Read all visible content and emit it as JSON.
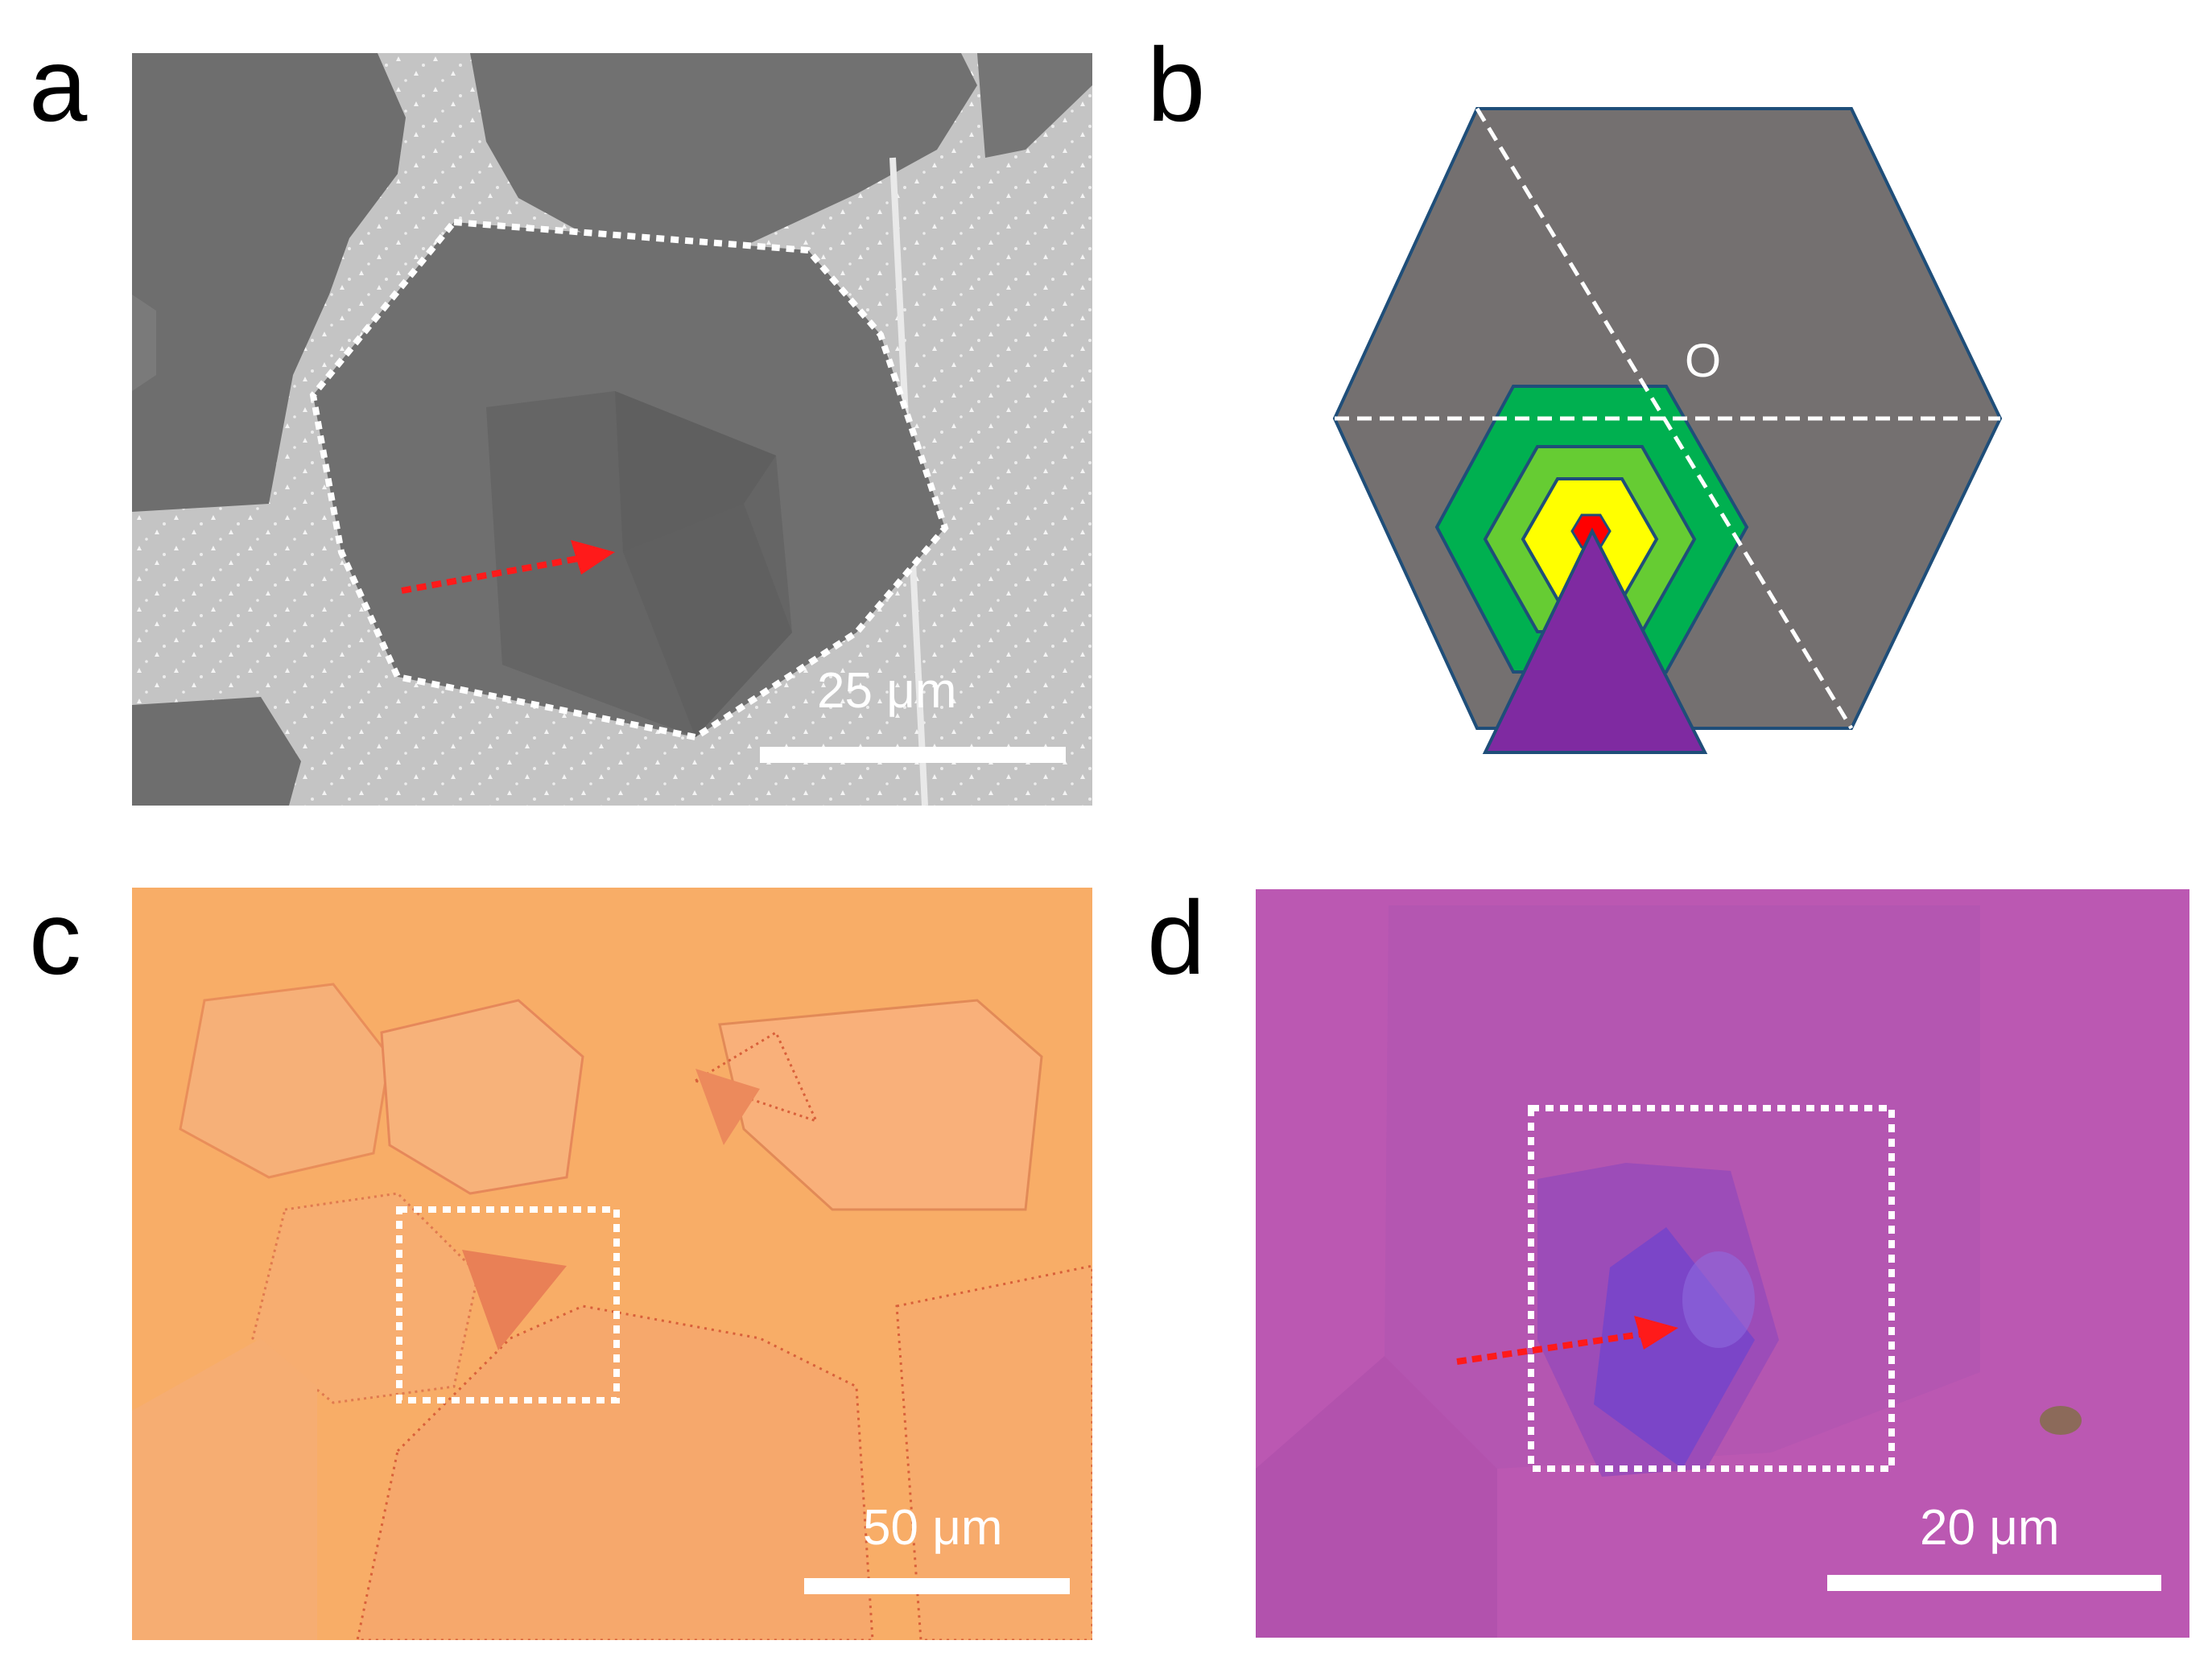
{
  "panels": {
    "a": {
      "label": "a",
      "scale_text": "25 μm",
      "image_type": "SEM micrograph",
      "colors": {
        "background": "#c4c4c4",
        "flake": "#6f6f6f"
      }
    },
    "b": {
      "label": "b",
      "center_label": "O",
      "colors": {
        "hexagon": "#747070",
        "outline": "#1f4e79",
        "green_dark": "#00b050",
        "green_light": "#66cc33",
        "yellow": "#ffff00",
        "red": "#ff0000",
        "triangle": "#7f2aa1"
      }
    },
    "c": {
      "label": "c",
      "scale_text": "50 μm",
      "image_type": "optical micrograph",
      "colors": {
        "background": "#f8ad67",
        "boundary": "#d8603a"
      }
    },
    "d": {
      "label": "d",
      "scale_text": "20 μm",
      "image_type": "optical micrograph",
      "colors": {
        "background": "#bb58b2",
        "triangle": "#7b45c8"
      }
    }
  },
  "arrow_color": "#ff1a1a",
  "box_color": "#ffffff"
}
